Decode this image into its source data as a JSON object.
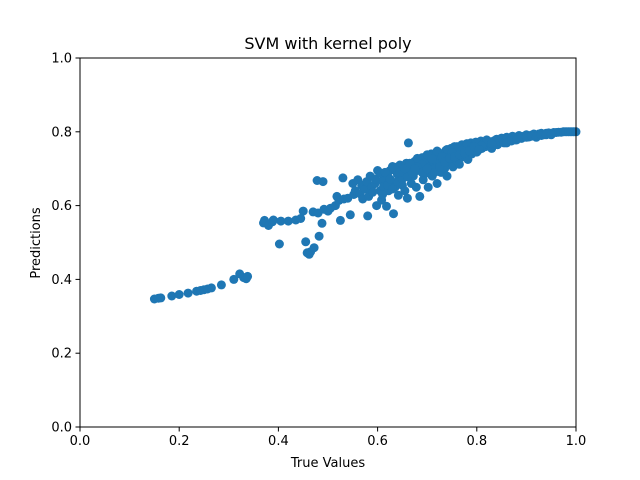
{
  "chart_data": {
    "type": "scatter",
    "title": "SVM with kernel poly",
    "xlabel": "True Values",
    "ylabel": "Predictions",
    "xlim": [
      0,
      1
    ],
    "ylim": [
      0,
      1
    ],
    "xticks": [
      "0.0",
      "0.2",
      "0.4",
      "0.6",
      "0.8",
      "1.0"
    ],
    "yticks": [
      "0.0",
      "0.2",
      "0.4",
      "0.6",
      "0.8",
      "1.0"
    ],
    "grid": false,
    "color": "#1f77b4",
    "points": [
      [
        0.15,
        0.347
      ],
      [
        0.158,
        0.349
      ],
      [
        0.163,
        0.35
      ],
      [
        0.185,
        0.355
      ],
      [
        0.2,
        0.359
      ],
      [
        0.218,
        0.363
      ],
      [
        0.235,
        0.368
      ],
      [
        0.243,
        0.37
      ],
      [
        0.25,
        0.372
      ],
      [
        0.257,
        0.374
      ],
      [
        0.265,
        0.377
      ],
      [
        0.285,
        0.385
      ],
      [
        0.31,
        0.4
      ],
      [
        0.322,
        0.415
      ],
      [
        0.33,
        0.405
      ],
      [
        0.335,
        0.402
      ],
      [
        0.338,
        0.408
      ],
      [
        0.37,
        0.553
      ],
      [
        0.372,
        0.56
      ],
      [
        0.38,
        0.546
      ],
      [
        0.388,
        0.556
      ],
      [
        0.39,
        0.561
      ],
      [
        0.405,
        0.558
      ],
      [
        0.402,
        0.496
      ],
      [
        0.42,
        0.558
      ],
      [
        0.435,
        0.561
      ],
      [
        0.445,
        0.565
      ],
      [
        0.45,
        0.585
      ],
      [
        0.455,
        0.502
      ],
      [
        0.458,
        0.472
      ],
      [
        0.462,
        0.468
      ],
      [
        0.465,
        0.475
      ],
      [
        0.47,
        0.583
      ],
      [
        0.472,
        0.486
      ],
      [
        0.478,
        0.668
      ],
      [
        0.48,
        0.58
      ],
      [
        0.482,
        0.517
      ],
      [
        0.488,
        0.552
      ],
      [
        0.49,
        0.665
      ],
      [
        0.492,
        0.59
      ],
      [
        0.5,
        0.585
      ],
      [
        0.505,
        0.593
      ],
      [
        0.515,
        0.6
      ],
      [
        0.518,
        0.625
      ],
      [
        0.522,
        0.614
      ],
      [
        0.525,
        0.56
      ],
      [
        0.53,
        0.675
      ],
      [
        0.532,
        0.618
      ],
      [
        0.54,
        0.62
      ],
      [
        0.545,
        0.575
      ],
      [
        0.55,
        0.66
      ],
      [
        0.552,
        0.63
      ],
      [
        0.555,
        0.64
      ],
      [
        0.56,
        0.67
      ],
      [
        0.565,
        0.632
      ],
      [
        0.568,
        0.655
      ],
      [
        0.57,
        0.618
      ],
      [
        0.575,
        0.645
      ],
      [
        0.578,
        0.665
      ],
      [
        0.58,
        0.572
      ],
      [
        0.582,
        0.625
      ],
      [
        0.588,
        0.65
      ],
      [
        0.59,
        0.636
      ],
      [
        0.595,
        0.66
      ],
      [
        0.598,
        0.6
      ],
      [
        0.6,
        0.695
      ],
      [
        0.605,
        0.64
      ],
      [
        0.608,
        0.615
      ],
      [
        0.61,
        0.668
      ],
      [
        0.612,
        0.652
      ],
      [
        0.618,
        0.598
      ],
      [
        0.62,
        0.681
      ],
      [
        0.622,
        0.64
      ],
      [
        0.625,
        0.695
      ],
      [
        0.628,
        0.665
      ],
      [
        0.63,
        0.706
      ],
      [
        0.632,
        0.578
      ],
      [
        0.635,
        0.65
      ],
      [
        0.64,
        0.685
      ],
      [
        0.642,
        0.628
      ],
      [
        0.645,
        0.71
      ],
      [
        0.648,
        0.675
      ],
      [
        0.65,
        0.655
      ],
      [
        0.652,
        0.695
      ],
      [
        0.655,
        0.64
      ],
      [
        0.658,
        0.715
      ],
      [
        0.66,
        0.62
      ],
      [
        0.662,
        0.77
      ],
      [
        0.664,
        0.69
      ],
      [
        0.668,
        0.66
      ],
      [
        0.67,
        0.705
      ],
      [
        0.672,
        0.68
      ],
      [
        0.675,
        0.72
      ],
      [
        0.678,
        0.65
      ],
      [
        0.68,
        0.695
      ],
      [
        0.682,
        0.715
      ],
      [
        0.685,
        0.625
      ],
      [
        0.688,
        0.7
      ],
      [
        0.69,
        0.73
      ],
      [
        0.692,
        0.67
      ],
      [
        0.695,
        0.71
      ],
      [
        0.698,
        0.688
      ],
      [
        0.7,
        0.725
      ],
      [
        0.702,
        0.65
      ],
      [
        0.705,
        0.705
      ],
      [
        0.708,
        0.74
      ],
      [
        0.71,
        0.68
      ],
      [
        0.712,
        0.72
      ],
      [
        0.715,
        0.7
      ],
      [
        0.718,
        0.735
      ],
      [
        0.72,
        0.66
      ],
      [
        0.722,
        0.745
      ],
      [
        0.725,
        0.715
      ],
      [
        0.728,
        0.69
      ],
      [
        0.73,
        0.74
      ],
      [
        0.732,
        0.725
      ],
      [
        0.735,
        0.7
      ],
      [
        0.738,
        0.75
      ],
      [
        0.74,
        0.68
      ],
      [
        0.742,
        0.735
      ],
      [
        0.745,
        0.715
      ],
      [
        0.748,
        0.755
      ],
      [
        0.75,
        0.735
      ],
      [
        0.752,
        0.705
      ],
      [
        0.755,
        0.76
      ],
      [
        0.758,
        0.74
      ],
      [
        0.76,
        0.722
      ],
      [
        0.762,
        0.755
      ],
      [
        0.765,
        0.712
      ],
      [
        0.768,
        0.745
      ],
      [
        0.77,
        0.765
      ],
      [
        0.772,
        0.732
      ],
      [
        0.775,
        0.758
      ],
      [
        0.778,
        0.745
      ],
      [
        0.78,
        0.768
      ],
      [
        0.782,
        0.725
      ],
      [
        0.785,
        0.755
      ],
      [
        0.788,
        0.77
      ],
      [
        0.79,
        0.74
      ],
      [
        0.792,
        0.762
      ],
      [
        0.795,
        0.752
      ],
      [
        0.798,
        0.772
      ],
      [
        0.8,
        0.745
      ],
      [
        0.805,
        0.765
      ],
      [
        0.808,
        0.775
      ],
      [
        0.81,
        0.755
      ],
      [
        0.815,
        0.77
      ],
      [
        0.818,
        0.76
      ],
      [
        0.82,
        0.778
      ],
      [
        0.825,
        0.765
      ],
      [
        0.828,
        0.773
      ],
      [
        0.83,
        0.755
      ],
      [
        0.835,
        0.776
      ],
      [
        0.84,
        0.78
      ],
      [
        0.842,
        0.765
      ],
      [
        0.845,
        0.775
      ],
      [
        0.85,
        0.783
      ],
      [
        0.855,
        0.77
      ],
      [
        0.858,
        0.779
      ],
      [
        0.86,
        0.785
      ],
      [
        0.865,
        0.775
      ],
      [
        0.87,
        0.782
      ],
      [
        0.872,
        0.788
      ],
      [
        0.878,
        0.778
      ],
      [
        0.88,
        0.786
      ],
      [
        0.885,
        0.79
      ],
      [
        0.89,
        0.782
      ],
      [
        0.895,
        0.788
      ],
      [
        0.9,
        0.792
      ],
      [
        0.905,
        0.786
      ],
      [
        0.91,
        0.791
      ],
      [
        0.915,
        0.794
      ],
      [
        0.92,
        0.79
      ],
      [
        0.925,
        0.794
      ],
      [
        0.93,
        0.796
      ],
      [
        0.935,
        0.792
      ],
      [
        0.94,
        0.796
      ],
      [
        0.945,
        0.797
      ],
      [
        0.95,
        0.795
      ],
      [
        0.955,
        0.798
      ],
      [
        0.96,
        0.798
      ],
      [
        0.965,
        0.799
      ],
      [
        0.97,
        0.799
      ],
      [
        0.975,
        0.8
      ],
      [
        0.98,
        0.8
      ],
      [
        0.985,
        0.8
      ],
      [
        0.99,
        0.8
      ],
      [
        0.995,
        0.8
      ],
      [
        1.0,
        0.8
      ],
      [
        0.64,
        0.705
      ],
      [
        0.66,
        0.71
      ],
      [
        0.68,
        0.728
      ],
      [
        0.7,
        0.738
      ],
      [
        0.72,
        0.748
      ],
      [
        0.74,
        0.752
      ],
      [
        0.76,
        0.76
      ],
      [
        0.78,
        0.764
      ],
      [
        0.8,
        0.77
      ],
      [
        0.82,
        0.772
      ],
      [
        0.65,
        0.683
      ],
      [
        0.67,
        0.697
      ],
      [
        0.69,
        0.712
      ],
      [
        0.71,
        0.726
      ],
      [
        0.73,
        0.733
      ],
      [
        0.75,
        0.744
      ],
      [
        0.77,
        0.75
      ],
      [
        0.79,
        0.758
      ],
      [
        0.81,
        0.763
      ],
      [
        0.83,
        0.768
      ],
      [
        0.61,
        0.63
      ],
      [
        0.62,
        0.655
      ],
      [
        0.63,
        0.645
      ],
      [
        0.64,
        0.665
      ],
      [
        0.65,
        0.672
      ],
      [
        0.66,
        0.678
      ],
      [
        0.67,
        0.688
      ],
      [
        0.68,
        0.705
      ],
      [
        0.69,
        0.69
      ],
      [
        0.7,
        0.7
      ],
      [
        0.715,
        0.69
      ],
      [
        0.725,
        0.705
      ],
      [
        0.735,
        0.718
      ],
      [
        0.745,
        0.728
      ],
      [
        0.755,
        0.732
      ],
      [
        0.765,
        0.738
      ],
      [
        0.775,
        0.742
      ],
      [
        0.785,
        0.748
      ],
      [
        0.795,
        0.76
      ],
      [
        0.805,
        0.752
      ],
      [
        0.585,
        0.68
      ],
      [
        0.595,
        0.672
      ],
      [
        0.605,
        0.688
      ],
      [
        0.615,
        0.69
      ],
      [
        0.625,
        0.672
      ],
      [
        0.635,
        0.698
      ],
      [
        0.645,
        0.69
      ],
      [
        0.655,
        0.7
      ],
      [
        0.665,
        0.715
      ],
      [
        0.675,
        0.7
      ],
      [
        0.86,
        0.77
      ],
      [
        0.87,
        0.775
      ],
      [
        0.88,
        0.778
      ],
      [
        0.89,
        0.787
      ],
      [
        0.9,
        0.785
      ],
      [
        0.91,
        0.788
      ],
      [
        0.92,
        0.785
      ],
      [
        0.93,
        0.79
      ],
      [
        0.94,
        0.792
      ],
      [
        0.95,
        0.792
      ]
    ]
  }
}
